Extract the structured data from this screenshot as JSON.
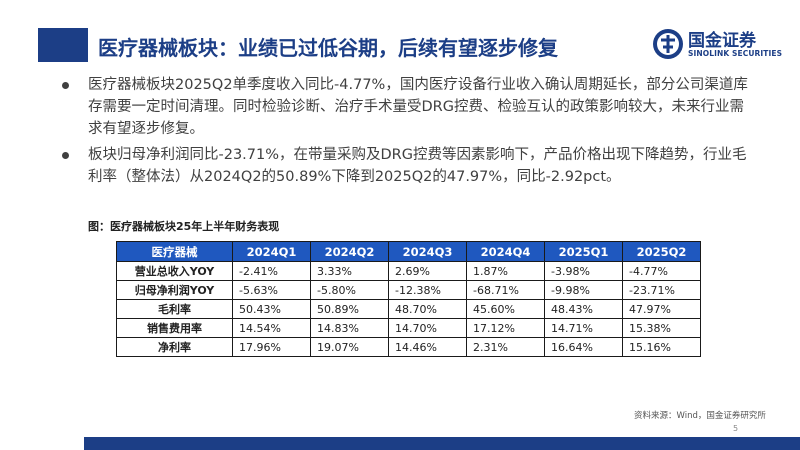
{
  "header": {
    "title": "医疗器械板块：业绩已过低谷期，后续有望逐步修复"
  },
  "logo": {
    "cn": "国金证券",
    "en": "SINOLINK SECURITIES"
  },
  "bullets": [
    "医疗器械板块2025Q2单季度收入同比-4.77%，国内医疗设备行业收入确认周期延长，部分公司渠道库存需要一定时间清理。同时检验诊断、治疗手术量受DRG控费、检验互认的政策影响较大，未来行业需求有望逐步修复。",
    "板块归母净利润同比-23.71%，在带量采购及DRG控费等因素影响下，产品价格出现下降趋势，行业毛利率（整体法）从2024Q2的50.89%下降到2025Q2的47.97%，同比-2.92pct。"
  ],
  "figure": {
    "caption": "图：医疗器械板块25年上半年财务表现"
  },
  "table": {
    "corner": "医疗器械",
    "columns": [
      "2024Q1",
      "2024Q2",
      "2024Q3",
      "2024Q4",
      "2025Q1",
      "2025Q2"
    ],
    "rows": [
      {
        "label": "营业总收入YOY",
        "values": [
          "-2.41%",
          "3.33%",
          "2.69%",
          "1.87%",
          "-3.98%",
          "-4.77%"
        ]
      },
      {
        "label": "归母净利润YOY",
        "values": [
          "-5.63%",
          "-5.80%",
          "-12.38%",
          "-68.71%",
          "-9.98%",
          "-23.71%"
        ]
      },
      {
        "label": "毛利率",
        "values": [
          "50.43%",
          "50.89%",
          "48.70%",
          "45.60%",
          "48.43%",
          "47.97%"
        ]
      },
      {
        "label": "销售费用率",
        "values": [
          "14.54%",
          "14.83%",
          "14.70%",
          "17.12%",
          "14.71%",
          "15.38%"
        ]
      },
      {
        "label": "净利率",
        "values": [
          "17.96%",
          "19.07%",
          "14.46%",
          "2.31%",
          "16.64%",
          "15.16%"
        ]
      }
    ]
  },
  "footer": {
    "source": "资料来源：Wind，国金证券研究所",
    "page": "5"
  },
  "colors": {
    "brand": "#1c3e86",
    "table_header": "#1f58bf"
  }
}
